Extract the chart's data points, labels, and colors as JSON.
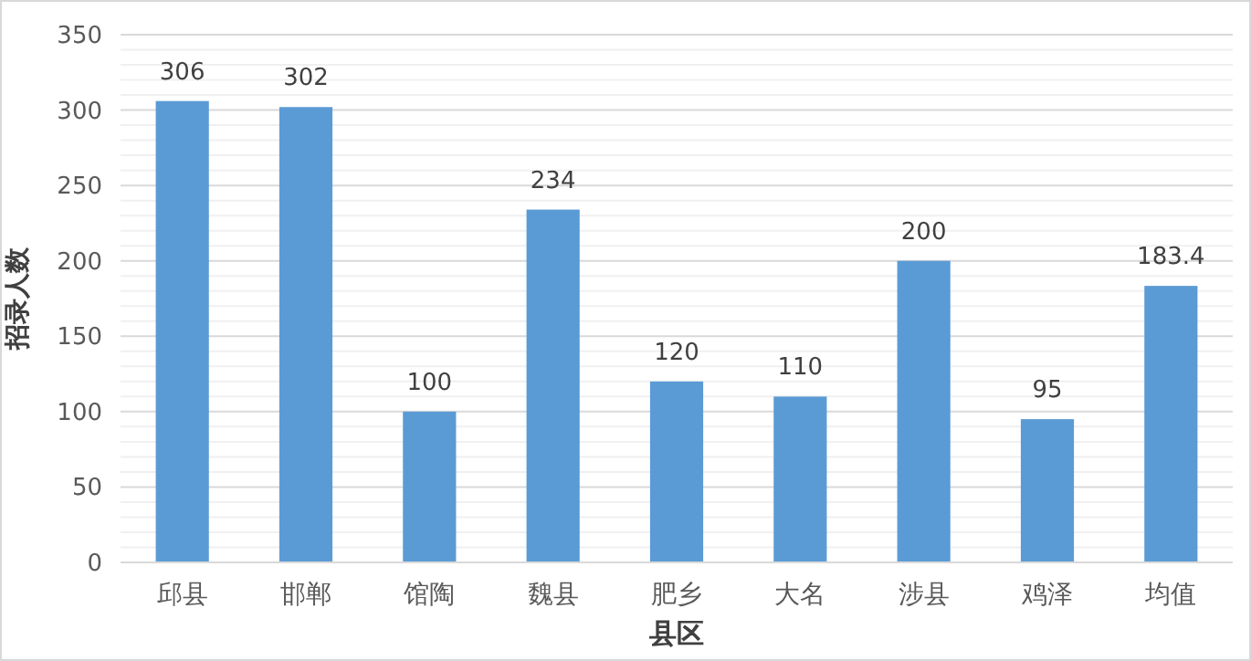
{
  "chart_data": {
    "type": "bar",
    "xlabel": "县区",
    "ylabel": "招录人数",
    "categories": [
      "邱县",
      "邯郸",
      "馆陶",
      "魏县",
      "肥乡",
      "大名",
      "涉县",
      "鸡泽",
      "均值"
    ],
    "values": [
      306,
      302,
      100,
      234,
      120,
      110,
      200,
      95,
      183.4
    ],
    "color": "#5b9bd5",
    "data_labels": true,
    "grid": "y",
    "ylim": [
      0,
      350
    ],
    "yticks": [
      0,
      {
        "value": 10,
        "label": null
      },
      {
        "value": 20,
        "label": null
      },
      {
        "value": 30,
        "label": null
      },
      {
        "value": 40,
        "label": null
      },
      50,
      {
        "value": 60,
        "label": null
      },
      {
        "value": 70,
        "label": null
      },
      {
        "value": 80,
        "label": null
      },
      {
        "value": 90,
        "label": null
      },
      100,
      {
        "value": 110,
        "label": null
      },
      {
        "value": 120,
        "label": null
      },
      {
        "value": 130,
        "label": null
      },
      {
        "value": 140,
        "label": null
      },
      150,
      {
        "value": 160,
        "label": null
      },
      {
        "value": 170,
        "label": null
      },
      {
        "value": 180,
        "label": null
      },
      {
        "value": 190,
        "label": null
      },
      200,
      {
        "value": 210,
        "label": null
      },
      {
        "value": 220,
        "label": null
      },
      {
        "value": 230,
        "label": null
      },
      {
        "value": 240,
        "label": null
      },
      250,
      {
        "value": 260,
        "label": null
      },
      {
        "value": 270,
        "label": null
      },
      {
        "value": 280,
        "label": null
      },
      {
        "value": 290,
        "label": null
      },
      300,
      {
        "value": 310,
        "label": null
      },
      {
        "value": 320,
        "label": null
      },
      {
        "value": 330,
        "label": null
      },
      {
        "value": 340,
        "label": null
      },
      350
    ]
  }
}
